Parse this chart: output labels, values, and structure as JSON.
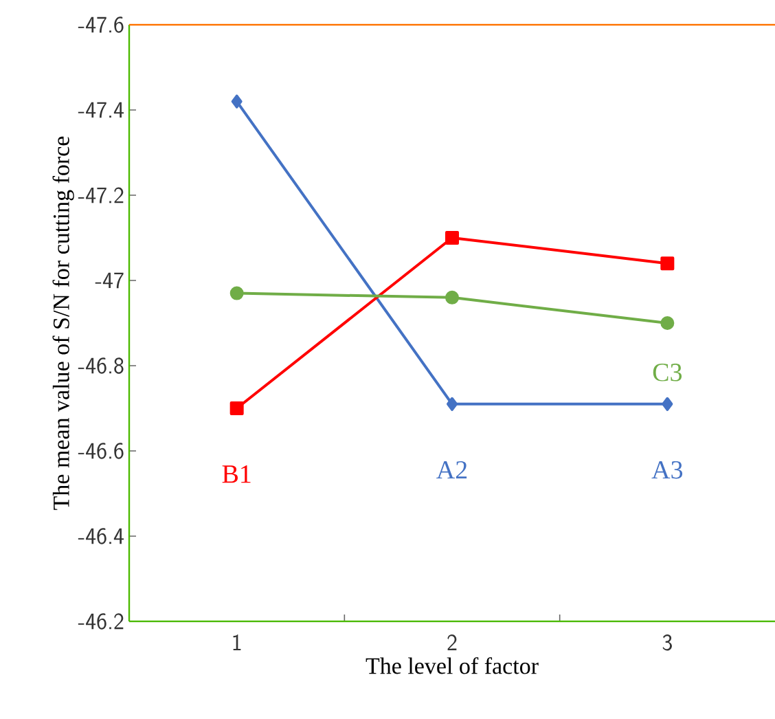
{
  "chart_data": {
    "type": "line",
    "xlabel": "The level of factor",
    "ylabel": "The mean value of S/N for cutting force",
    "categories": [
      "1",
      "2",
      "3"
    ],
    "series": [
      {
        "color": "#4472c4",
        "marker": "diamond",
        "values": [
          -47.42,
          -46.71,
          -46.71
        ]
      },
      {
        "color": "#ff0000",
        "marker": "square",
        "values": [
          -46.7,
          -47.1,
          -47.04
        ]
      },
      {
        "color": "#70ad47",
        "marker": "circle",
        "values": [
          -46.97,
          -46.96,
          -46.9
        ]
      }
    ],
    "ylim": [
      -46.2,
      -47.6
    ],
    "yticks": [
      -46.2,
      -46.4,
      -46.6,
      -46.8,
      -47,
      -47.2,
      -47.4,
      -47.6
    ],
    "annotations": [
      {
        "text": "B1",
        "x": "1",
        "y": -46.7
      },
      {
        "text": "A2",
        "x": "2",
        "y": -46.71
      },
      {
        "text": "A3",
        "x": "3",
        "y": -46.71
      },
      {
        "text": "C3",
        "x": "3",
        "y": -46.9
      }
    ],
    "grid": false
  }
}
